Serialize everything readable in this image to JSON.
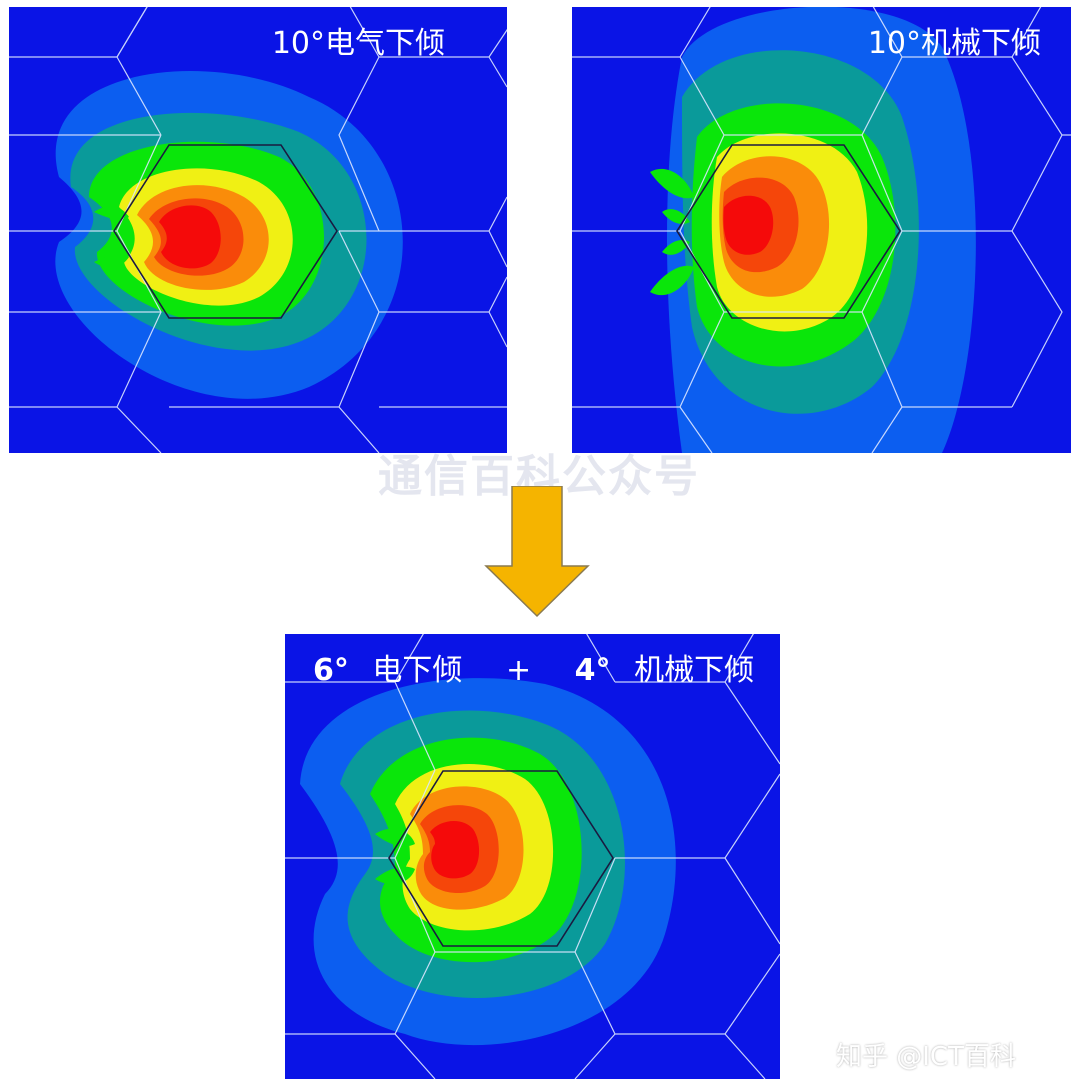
{
  "panels": {
    "top_left": {
      "label": "10°电气下倾"
    },
    "top_right": {
      "label": "10°机械下倾"
    },
    "bottom": {
      "electrical_value": "6°",
      "electrical_text": "电下倾",
      "plus": "+",
      "mechanical_value": "4°",
      "mechanical_text": "机械下倾"
    }
  },
  "watermark": "通信百科公众号",
  "credit": "知乎 @ICT百科",
  "colors": {
    "background_blue": "#0a14e6",
    "contour_levels": [
      "#0c5ef0",
      "#0a9a9a",
      "#0ae60a",
      "#f0f014",
      "#fa8c0a",
      "#f5460a",
      "#f50a0a"
    ],
    "arrow": "#f5b400",
    "cell_grid": "#dce6ff",
    "serving_cell": "#1a1a40"
  },
  "icons": {
    "arrow": "down-arrow-icon"
  }
}
